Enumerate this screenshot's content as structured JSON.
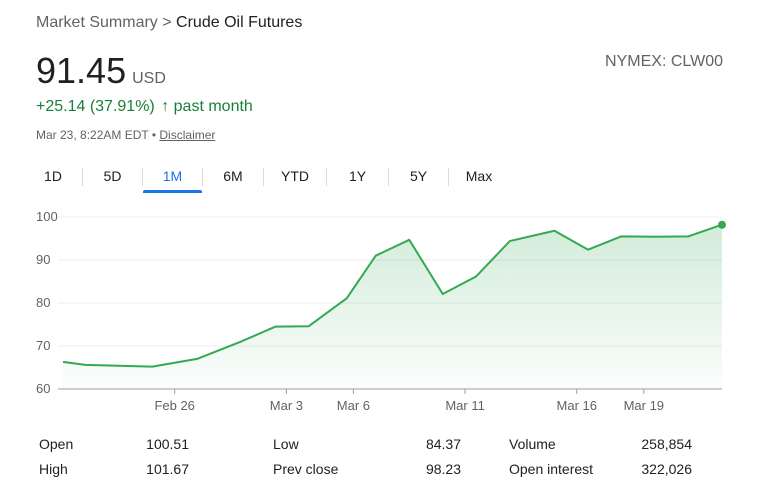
{
  "breadcrumb": {
    "parent": "Market Summary",
    "separator": ">",
    "current": "Crude Oil Futures"
  },
  "quote": {
    "price": "91.45",
    "currency": "USD",
    "ticker": "NYMEX: CLW00",
    "change": "+25.14 (37.91%)",
    "change_arrow": "↑",
    "change_period": "past month",
    "timestamp": "Mar 23, 8:22AM EDT",
    "bullet": "•",
    "disclaimer": "Disclaimer"
  },
  "tabs": [
    {
      "label": "1D",
      "active": false
    },
    {
      "label": "5D",
      "active": false
    },
    {
      "label": "1M",
      "active": true
    },
    {
      "label": "6M",
      "active": false
    },
    {
      "label": "YTD",
      "active": false
    },
    {
      "label": "1Y",
      "active": false
    },
    {
      "label": "5Y",
      "active": false
    },
    {
      "label": "Max",
      "active": false
    }
  ],
  "colors": {
    "line": "#34a853",
    "fill": "#34a853",
    "accent": "#1a73e8",
    "up": "#188038"
  },
  "chart_data": {
    "type": "area",
    "ylim": [
      60,
      100
    ],
    "yticks": [
      60,
      70,
      80,
      90,
      100
    ],
    "x_tick_labels": [
      {
        "label": "Feb 26",
        "at": 5
      },
      {
        "label": "Mar 3",
        "at": 10
      },
      {
        "label": "Mar 6",
        "at": 13
      },
      {
        "label": "Mar 11",
        "at": 18
      },
      {
        "label": "Mar 16",
        "at": 23
      },
      {
        "label": "Mar 19",
        "at": 26
      }
    ],
    "series": [
      {
        "values": [
          [
            0,
            66.3
          ],
          [
            1,
            65.6
          ],
          [
            4,
            65.2
          ],
          [
            6,
            67.0
          ],
          [
            8,
            71.1
          ],
          [
            9.5,
            74.5
          ],
          [
            11,
            74.6
          ],
          [
            12.7,
            81.1
          ],
          [
            14,
            91.0
          ],
          [
            15.5,
            94.7
          ],
          [
            17,
            82.1
          ],
          [
            18.5,
            86.2
          ],
          [
            20,
            94.4
          ],
          [
            22,
            96.8
          ],
          [
            23.5,
            92.4
          ],
          [
            25,
            95.5
          ],
          [
            26.5,
            95.4
          ],
          [
            28,
            95.5
          ],
          [
            29.5,
            98.2
          ]
        ]
      }
    ]
  },
  "stats": [
    {
      "label": "Open",
      "value": "100.51"
    },
    {
      "label": "High",
      "value": "101.67"
    },
    {
      "label": "Low",
      "value": "84.37"
    },
    {
      "label": "Prev close",
      "value": "98.23"
    },
    {
      "label": "Volume",
      "value": "258,854"
    },
    {
      "label": "Open interest",
      "value": "322,026"
    }
  ]
}
